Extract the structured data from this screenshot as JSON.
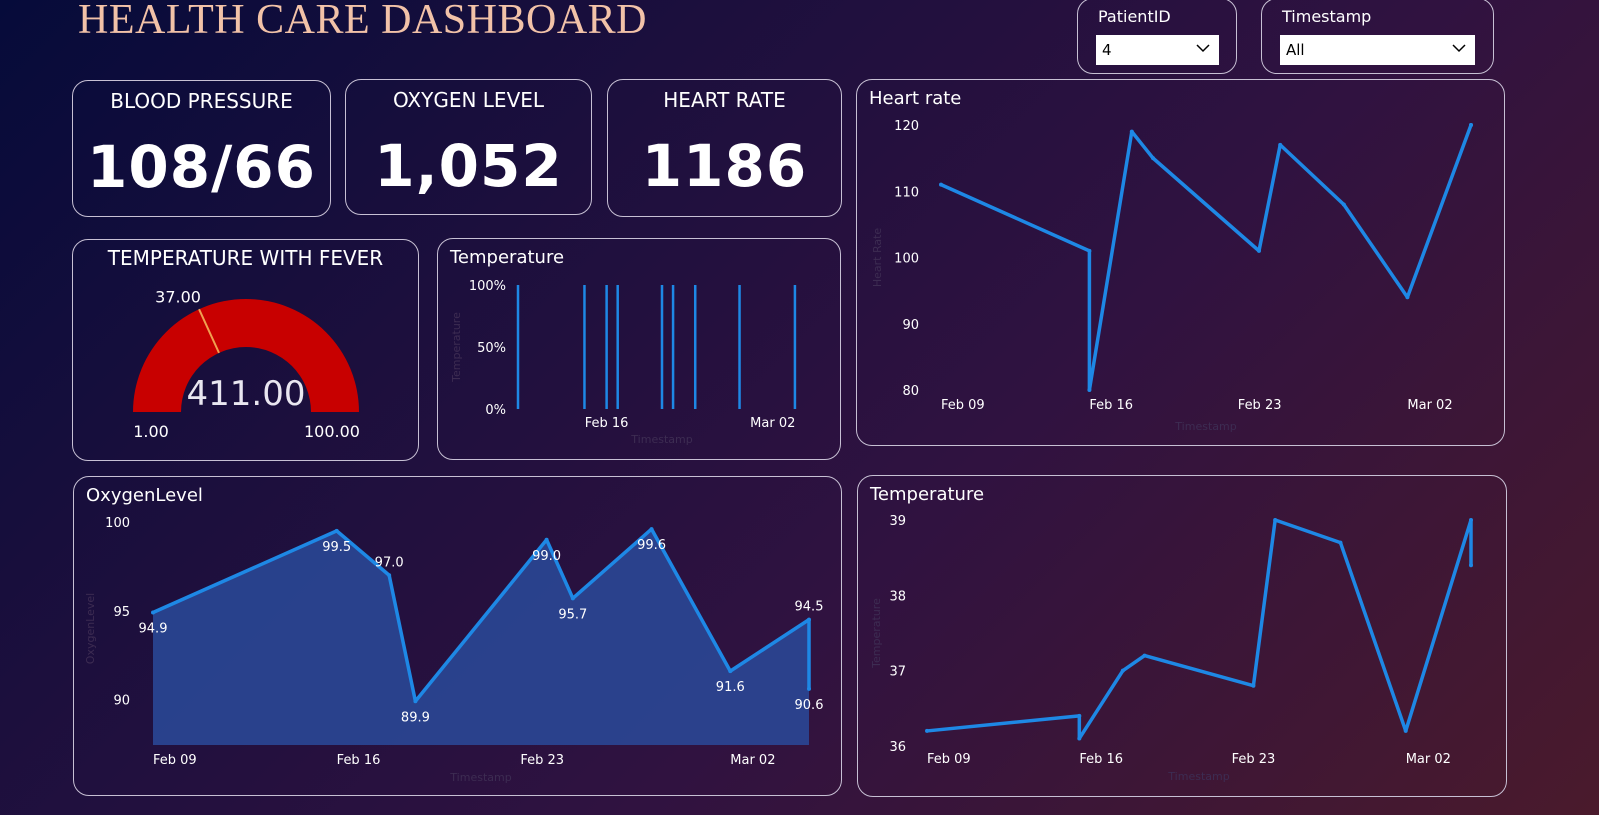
{
  "header": {
    "title": "HEALTH CARE DASHBOARD"
  },
  "slicers": {
    "patient": {
      "label": "PatientID",
      "value": "4"
    },
    "timestamp": {
      "label": "Timestamp",
      "value": "All"
    }
  },
  "kpis": {
    "blood_pressure": {
      "label": "BLOOD PRESSURE",
      "value": "108/66"
    },
    "oxygen_level": {
      "label": "OXYGEN LEVEL",
      "value": "1,052"
    },
    "heart_rate": {
      "label": "HEART RATE",
      "value": "1186"
    }
  },
  "gauge": {
    "title": "TEMPERATURE WITH FEVER",
    "value_label": "411.00",
    "min_label": "1.00",
    "max_label": "100.00",
    "target_label": "37.00",
    "min": 1,
    "max": 100,
    "target": 37,
    "value": 411,
    "fill_color": "#c80000",
    "target_color": "#f0a050"
  },
  "chart_data": [
    {
      "id": "temperature_bars",
      "type": "bar",
      "title": "Temperature",
      "xlabel": "Timestamp",
      "ylabel": "Temperature",
      "ytick_labels": [
        "100%",
        "50%",
        "0%"
      ],
      "xtick_labels": [
        "Feb 16",
        "Mar 02"
      ],
      "xtick_dates": [
        "2024-02-16",
        "2024-03-02"
      ],
      "x_range": [
        "2024-02-08",
        "2024-03-05"
      ],
      "dates": [
        "2024-02-08",
        "2024-02-14",
        "2024-02-16",
        "2024-02-17",
        "2024-02-21",
        "2024-02-22",
        "2024-02-24",
        "2024-02-28",
        "2024-03-04"
      ],
      "values": [
        1,
        1,
        1,
        1,
        1,
        1,
        1,
        1,
        1
      ],
      "ylim": [
        0,
        1
      ],
      "color": "#1e88e5"
    },
    {
      "id": "heart_rate",
      "type": "line",
      "title": "Heart rate",
      "xlabel": "Timestamp",
      "ylabel": "Heart Rate",
      "ytick_values": [
        120,
        110,
        100,
        90,
        80
      ],
      "xtick_labels": [
        "Feb 09",
        "Feb 16",
        "Feb 23",
        "Mar 02"
      ],
      "xtick_dates": [
        "2024-02-09",
        "2024-02-16",
        "2024-02-23",
        "2024-03-02"
      ],
      "x_range": [
        "2024-02-09",
        "2024-03-05"
      ],
      "x": [
        "2024-02-09",
        "2024-02-16",
        "2024-02-16",
        "2024-02-18",
        "2024-02-19",
        "2024-02-24",
        "2024-02-25",
        "2024-02-28",
        "2024-03-02",
        "2024-03-05",
        "2024-03-05"
      ],
      "y": [
        111,
        101,
        80,
        119,
        115,
        101,
        117,
        108,
        94,
        120,
        120
      ],
      "ylim": [
        80,
        120
      ],
      "color": "#1e88e5"
    },
    {
      "id": "oxygen_level",
      "type": "area",
      "title": "OxygenLevel",
      "xlabel": "Timestamp",
      "ylabel": "OxygenLevel",
      "ytick_values": [
        100,
        95,
        90
      ],
      "xtick_labels": [
        "Feb 09",
        "Feb 16",
        "Feb 23",
        "Mar 02"
      ],
      "xtick_dates": [
        "2024-02-09",
        "2024-02-16",
        "2024-02-23",
        "2024-03-02"
      ],
      "x_range": [
        "2024-02-09",
        "2024-03-05"
      ],
      "x": [
        "2024-02-09",
        "2024-02-16",
        "2024-02-18",
        "2024-02-19",
        "2024-02-24",
        "2024-02-25",
        "2024-02-28",
        "2024-03-02",
        "2024-03-05",
        "2024-03-05"
      ],
      "y": [
        94.9,
        99.5,
        97.0,
        89.9,
        99.0,
        95.7,
        99.6,
        91.6,
        94.5,
        90.6
      ],
      "labels": [
        "94.9",
        "99.5",
        "97.0",
        "89.9",
        "99.0",
        "95.7",
        "99.6",
        "91.6",
        "94.5",
        "90.6"
      ],
      "label_pos": [
        "below",
        "below",
        "above",
        "below",
        "below",
        "below",
        "below",
        "below",
        "above",
        "below"
      ],
      "ylim": [
        88,
        100
      ],
      "color": "#1e88e5",
      "fill_color": "#2a4a9a"
    },
    {
      "id": "temperature_line",
      "type": "line",
      "title": "Temperature",
      "xlabel": "Timestamp",
      "ylabel": "Temperature",
      "ytick_values": [
        39,
        38,
        37,
        36
      ],
      "xtick_labels": [
        "Feb 09",
        "Feb 16",
        "Feb 23",
        "Mar 02"
      ],
      "xtick_dates": [
        "2024-02-09",
        "2024-02-16",
        "2024-02-23",
        "2024-03-02"
      ],
      "x_range": [
        "2024-02-09",
        "2024-03-05"
      ],
      "x": [
        "2024-02-09",
        "2024-02-16",
        "2024-02-16",
        "2024-02-18",
        "2024-02-19",
        "2024-02-24",
        "2024-02-25",
        "2024-02-28",
        "2024-03-02",
        "2024-03-05",
        "2024-03-05"
      ],
      "y": [
        36.2,
        36.4,
        36.1,
        37.0,
        37.2,
        36.8,
        39.0,
        38.7,
        36.2,
        39.0,
        38.4
      ],
      "ylim": [
        36,
        39
      ],
      "color": "#1e88e5"
    }
  ]
}
